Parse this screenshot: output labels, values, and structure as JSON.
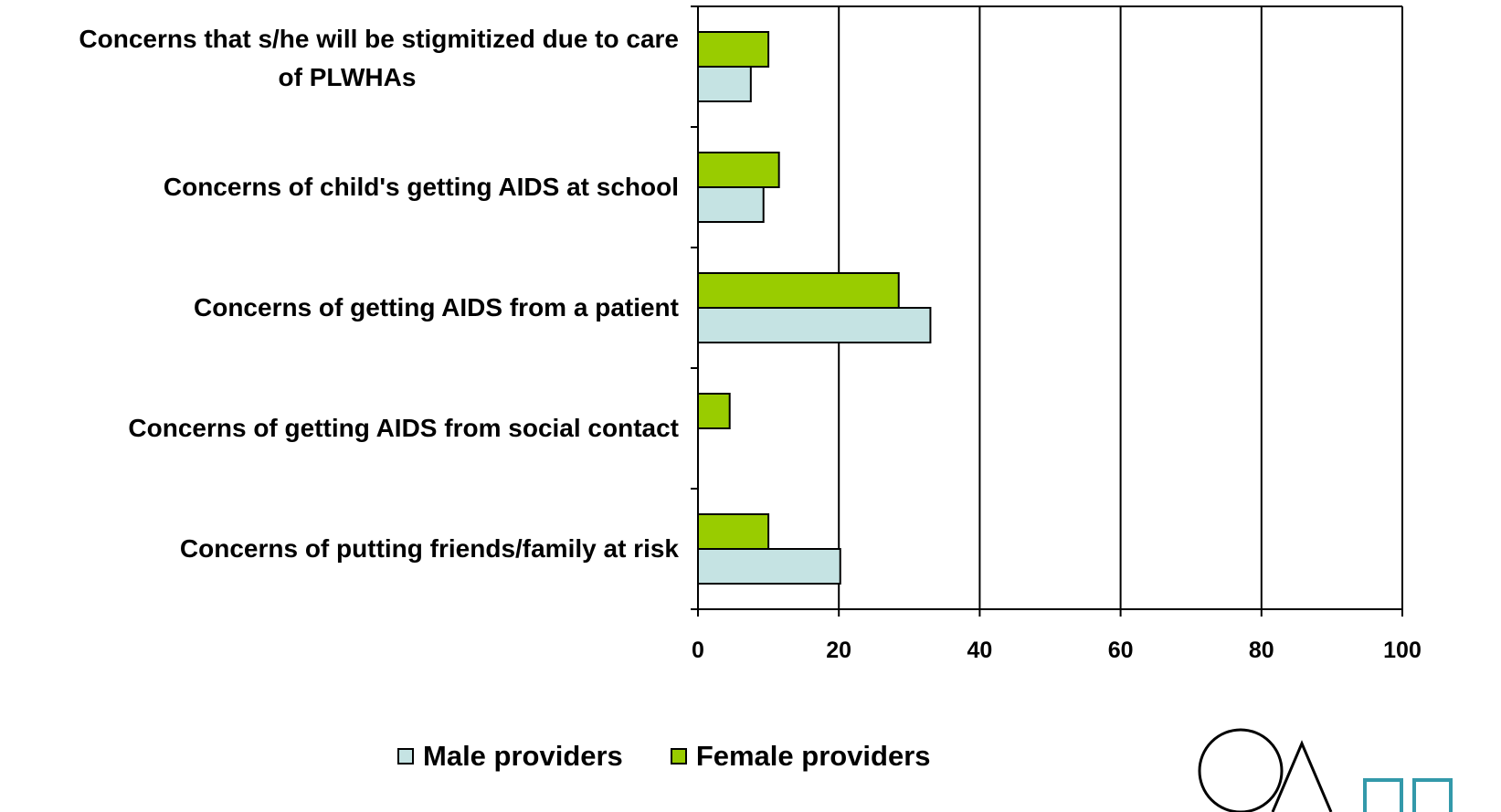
{
  "chart_data": {
    "type": "bar",
    "orientation": "horizontal",
    "categories": [
      "Concerns that s/he will be stigmitized due to care of PLWHAs",
      "Concerns of child's getting AIDS at school",
      "Concerns of getting AIDS from a patient",
      "Concerns of getting AIDS from social contact",
      "Concerns of putting friends/family at risk"
    ],
    "category_lines": [
      [
        "Concerns that s/he will be stigmitized due to care",
        "of PLWHAs"
      ],
      [
        "Concerns of child's getting AIDS at school"
      ],
      [
        "Concerns of getting AIDS from a patient"
      ],
      [
        "Concerns of getting AIDS from social contact"
      ],
      [
        "Concerns of putting friends/family at risk"
      ]
    ],
    "series": [
      {
        "name": "Female providers",
        "color": "#99cc00",
        "values": [
          10,
          11.5,
          28.5,
          4.5,
          10
        ]
      },
      {
        "name": "Male providers",
        "color": "#c5e3e3",
        "values": [
          7.5,
          9.3,
          33,
          0,
          20.2
        ]
      }
    ],
    "xlim": [
      0,
      100
    ],
    "xticks": [
      "0",
      "20",
      "40",
      "60",
      "80",
      "100"
    ],
    "grid": "vertical",
    "legend_position": "bottom"
  },
  "legend": {
    "male_label": "Male providers",
    "female_label": "Female providers",
    "male_color": "#c5e3e3",
    "female_color": "#99cc00"
  },
  "logo": {
    "icon": "logo-partial-icon"
  }
}
